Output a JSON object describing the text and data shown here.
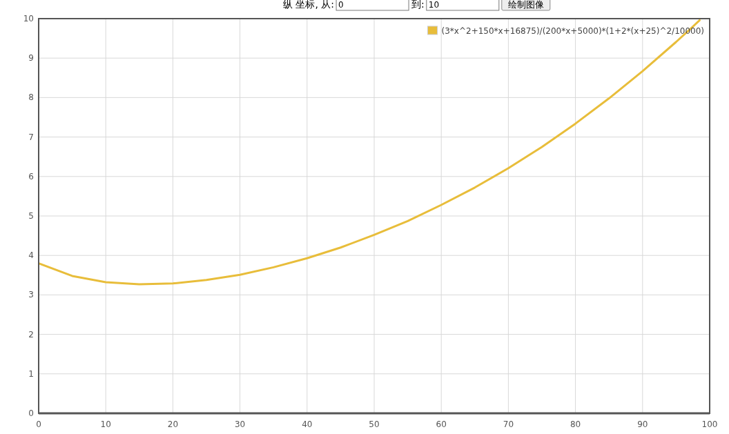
{
  "chart_data": {
    "type": "line",
    "annotations": [
      "纵 坐标, 从:",
      "0",
      "到:",
      "10",
      "绘制图像"
    ],
    "x": [
      0,
      5,
      10,
      15,
      20,
      25,
      30,
      35,
      40,
      45,
      50,
      55,
      60,
      65,
      70,
      75,
      80,
      85,
      90,
      95,
      97,
      98.5
    ],
    "series": [
      {
        "name": "(3*x^2+150*x+16875)/(200*x+5000)*(1+2*(x+25)^2/10000)",
        "color": "#e8bd3a",
        "values": [
          3.8,
          3.48,
          3.32,
          3.27,
          3.29,
          3.38,
          3.51,
          3.7,
          3.93,
          4.2,
          4.52,
          4.87,
          5.28,
          5.72,
          6.21,
          6.75,
          7.34,
          7.98,
          8.67,
          9.41,
          9.72,
          9.96
        ]
      }
    ],
    "xlim": [
      0,
      100
    ],
    "ylim": [
      0,
      10
    ],
    "xticks": [
      0,
      10,
      20,
      30,
      40,
      50,
      60,
      70,
      80,
      90,
      100
    ],
    "yticks": [
      0,
      1,
      2,
      3,
      4,
      5,
      6,
      7,
      8,
      9,
      10
    ],
    "grid": true,
    "legend": "top right",
    "marker": "none",
    "line_style": "solid"
  }
}
